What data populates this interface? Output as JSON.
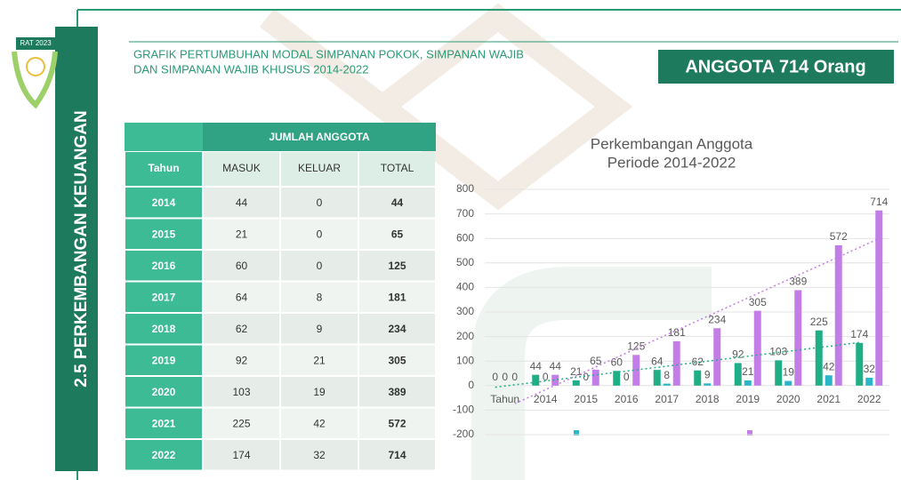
{
  "badge": "RAT 2023",
  "section_title": "2.5 PERKEMBANGAN KEUANGAN",
  "heading": [
    "GRAFIK PERTUMBUHAN MODAL SIMPANAN POKOK, SIMPANAN WAJIB",
    "DAN SIMPANAN WAJIB KHUSUS 2014-2022"
  ],
  "highlight": "ANGGOTA 714 Orang",
  "table": {
    "group_header": "JUMLAH ANGGOTA",
    "columns": [
      "Tahun",
      "MASUK",
      "KELUAR",
      "TOTAL"
    ],
    "rows": [
      [
        "2014",
        "44",
        "0",
        "44"
      ],
      [
        "2015",
        "21",
        "0",
        "65"
      ],
      [
        "2016",
        "60",
        "0",
        "125"
      ],
      [
        "2017",
        "64",
        "8",
        "181"
      ],
      [
        "2018",
        "62",
        "9",
        "234"
      ],
      [
        "2019",
        "92",
        "21",
        "305"
      ],
      [
        "2020",
        "103",
        "19",
        "389"
      ],
      [
        "2021",
        "225",
        "42",
        "572"
      ],
      [
        "2022",
        "174",
        "32",
        "714"
      ]
    ]
  },
  "chart_data": {
    "type": "bar",
    "title": "Perkembangan Anggota",
    "subtitle": "Periode 2014-2022",
    "categories": [
      "Tahun",
      "2014",
      "2015",
      "2016",
      "2017",
      "2018",
      "2019",
      "2020",
      "2021",
      "2022"
    ],
    "series": [
      {
        "color": "#1fae86",
        "trendline": true,
        "values": [
          0,
          44,
          21,
          60,
          64,
          62,
          92,
          103,
          225,
          174
        ]
      },
      {
        "color": "#2ab6c8",
        "trendline": false,
        "values": [
          0,
          0,
          0,
          0,
          8,
          9,
          21,
          19,
          42,
          32
        ]
      },
      {
        "color": "#c27ee6",
        "trendline": true,
        "values": [
          0,
          44,
          65,
          125,
          181,
          234,
          305,
          389,
          572,
          714
        ]
      }
    ],
    "ylim": [
      -200,
      800
    ],
    "yticks": [
      -200,
      -100,
      0,
      100,
      200,
      300,
      400,
      500,
      600,
      700,
      800
    ],
    "grid": true
  }
}
